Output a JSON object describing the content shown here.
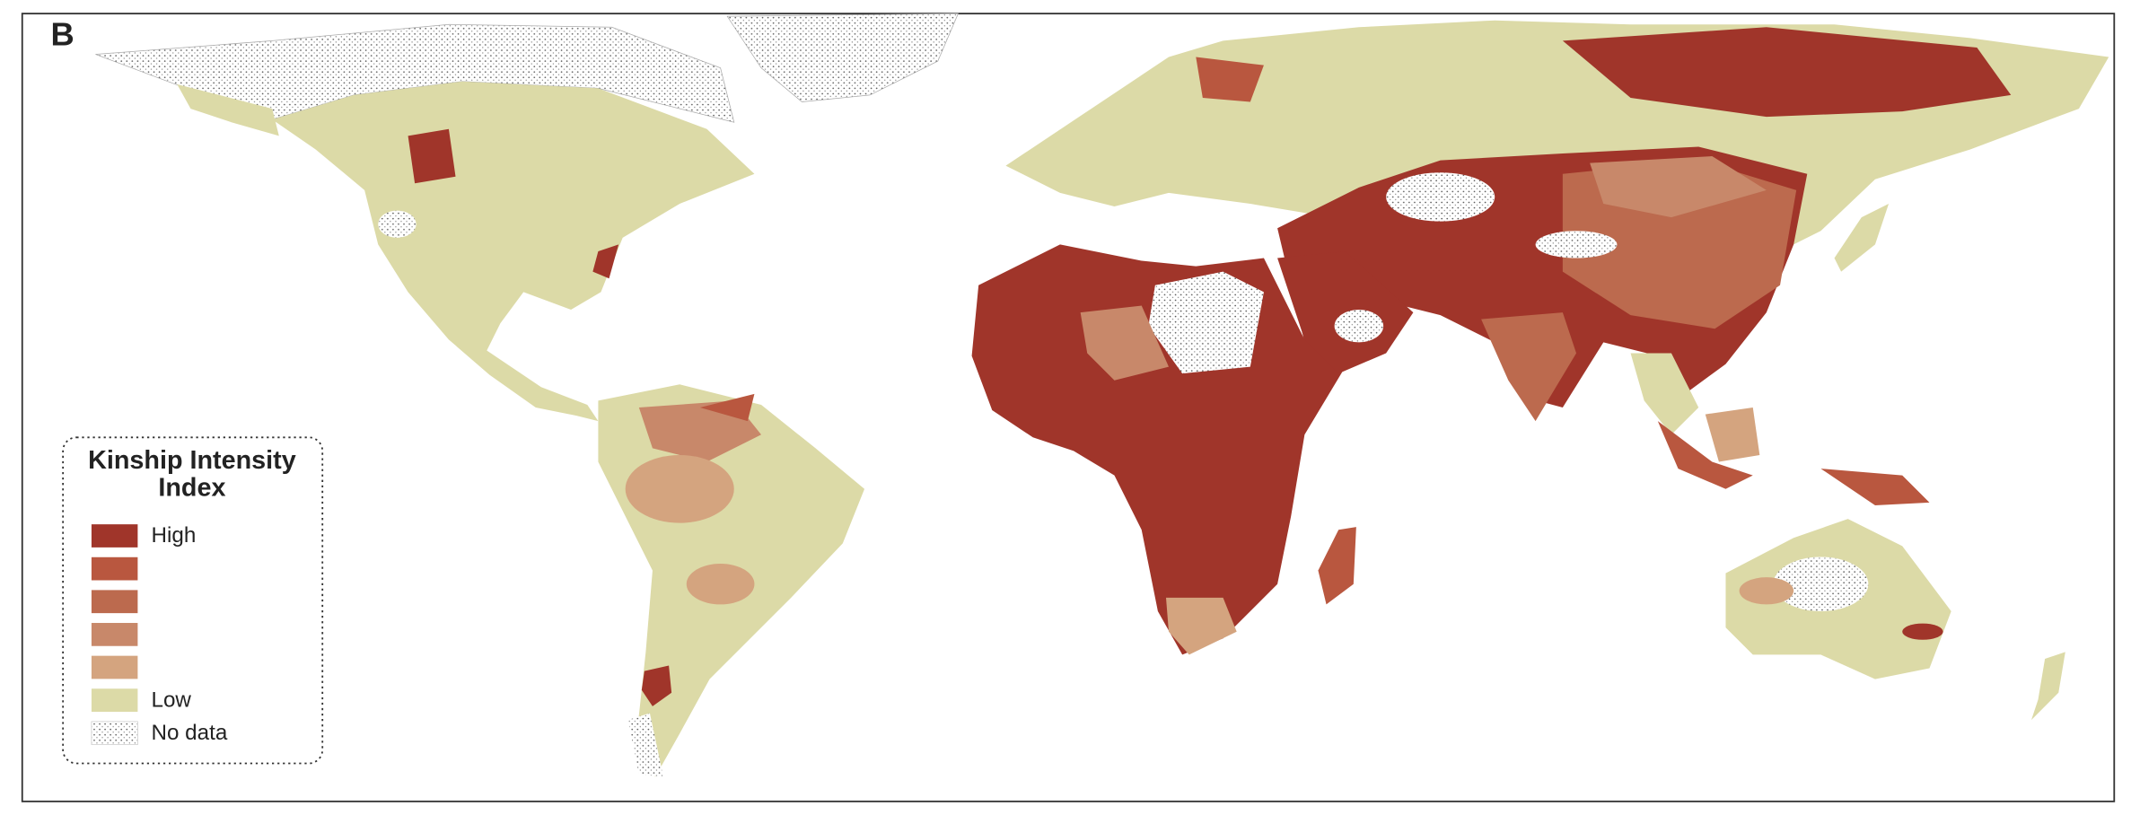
{
  "panel_label": "B",
  "legend": {
    "title": [
      "Kinship Intensity",
      "Index"
    ],
    "items": [
      {
        "label": "High",
        "color": "#a0352a"
      },
      {
        "color": "#b9573f"
      },
      {
        "color": "#bc6a4e"
      },
      {
        "color": "#c8886a"
      },
      {
        "color": "#d4a47f"
      },
      {
        "label": "Low",
        "color": "#dcdaa7"
      },
      {
        "label": "No data",
        "color": "dots"
      }
    ]
  }
}
